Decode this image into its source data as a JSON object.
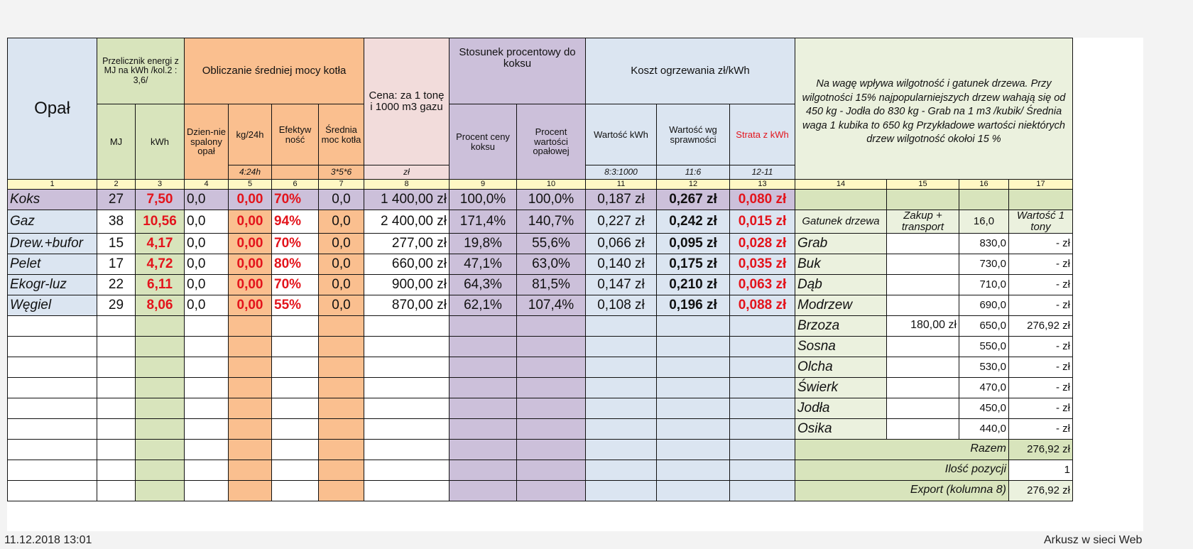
{
  "header": {
    "opal": "Opał",
    "przelicznik": "Przelicznik energi z MJ na kWh /kol.2 : 3,6/",
    "obliczanie": "Obliczanie średniej mocy kotła",
    "cena": "Cena: za 1 tonę i 1000 m3 gazu",
    "stosunek": "Stosunek procentowy do koksu",
    "koszt": "Koszt ogrzewania zł/kWh",
    "note": "Na wagę wpływa wilgotność i gatunek drzewa. Przy wilgotności 15% najpopularniejszych drzew wahają się od 450 kg - Jodła do 830 kg - Grab na 1 m3 /kubik/ Średnia waga 1 kubika to 650 kg Przykładowe wartości niektórych drzew wilgotność okołoi 15 %",
    "mj": "MJ",
    "kwh": "kWh",
    "dziennie": "Dzien-nie spalony opał",
    "kg24h": "kg/24h",
    "efektywnosc": "Efektyw ność",
    "srednia_moc": "Średnia moc kotła",
    "procent_ceny": "Procent ceny koksu",
    "procent_wartosci": "Procent wartości opałowej",
    "wartosc_kwh": "Wartość kWh",
    "wartosc_wg": "Wartość wg sprawności",
    "strata": "Strata z kWh",
    "sub_5": "4:24h",
    "sub_7": "3*5*6",
    "sub_8": "zł",
    "sub_11": "8:3:1000",
    "sub_12": "11:6",
    "sub_13": "12-11",
    "gatunek": "Gatunek drzewa",
    "zakup": "Zakup + transport",
    "col16": "16,0",
    "wartosc_tony": "Wartość 1 tony"
  },
  "col_numbers": [
    "1",
    "2",
    "3",
    "4",
    "5",
    "6",
    "7",
    "8",
    "9",
    "10",
    "11",
    "12",
    "13",
    "14",
    "15",
    "16",
    "17"
  ],
  "fuels": [
    {
      "name": "Koks",
      "mj": "27",
      "kwh": "7,50",
      "dz": "0,0",
      "kg": "0,00",
      "ef": "70%",
      "sm": "0,0",
      "cena": "1 400,00 zł",
      "pc": "100,0%",
      "pw": "100,0%",
      "wk": "0,187 zł",
      "ws": "0,267 zł",
      "st": "0,080 zł"
    },
    {
      "name": "Gaz",
      "mj": "38",
      "kwh": "10,56",
      "dz": "0,0",
      "kg": "0,00",
      "ef": "94%",
      "sm": "0,0",
      "cena": "2 400,00 zł",
      "pc": "171,4%",
      "pw": "140,7%",
      "wk": "0,227 zł",
      "ws": "0,242 zł",
      "st": "0,015 zł"
    },
    {
      "name": "Drew.+bufor",
      "mj": "15",
      "kwh": "4,17",
      "dz": "0,0",
      "kg": "0,00",
      "ef": "70%",
      "sm": "0,0",
      "cena": "277,00 zł",
      "pc": "19,8%",
      "pw": "55,6%",
      "wk": "0,066 zł",
      "ws": "0,095 zł",
      "st": "0,028 zł"
    },
    {
      "name": "Pelet",
      "mj": "17",
      "kwh": "4,72",
      "dz": "0,0",
      "kg": "0,00",
      "ef": "80%",
      "sm": "0,0",
      "cena": "660,00 zł",
      "pc": "47,1%",
      "pw": "63,0%",
      "wk": "0,140 zł",
      "ws": "0,175 zł",
      "st": "0,035 zł"
    },
    {
      "name": "Ekogr-luz",
      "mj": "22",
      "kwh": "6,11",
      "dz": "0,0",
      "kg": "0,00",
      "ef": "70%",
      "sm": "0,0",
      "cena": "900,00 zł",
      "pc": "64,3%",
      "pw": "81,5%",
      "wk": "0,147 zł",
      "ws": "0,210 zł",
      "st": "0,063 zł"
    },
    {
      "name": "Węgiel",
      "mj": "29",
      "kwh": "8,06",
      "dz": "0,0",
      "kg": "0,00",
      "ef": "55%",
      "sm": "0,0",
      "cena": "870,00 zł",
      "pc": "62,1%",
      "pw": "107,4%",
      "wk": "0,108 zł",
      "ws": "0,196 zł",
      "st": "0,088 zł"
    }
  ],
  "woods": [
    {
      "name": "Grab",
      "zakup": "",
      "kg": "830,0",
      "wart": "-   zł"
    },
    {
      "name": "Buk",
      "zakup": "",
      "kg": "730,0",
      "wart": "-   zł"
    },
    {
      "name": "Dąb",
      "zakup": "",
      "kg": "710,0",
      "wart": "-   zł"
    },
    {
      "name": "Modrzew",
      "zakup": "",
      "kg": "690,0",
      "wart": "-   zł"
    },
    {
      "name": "Brzoza",
      "zakup": "180,00 zł",
      "kg": "650,0",
      "wart": "276,92 zł"
    },
    {
      "name": "Sosna",
      "zakup": "",
      "kg": "550,0",
      "wart": "-   zł"
    },
    {
      "name": "Olcha",
      "zakup": "",
      "kg": "530,0",
      "wart": "-   zł"
    },
    {
      "name": "Świerk",
      "zakup": "",
      "kg": "470,0",
      "wart": "-   zł"
    },
    {
      "name": "Jodła",
      "zakup": "",
      "kg": "450,0",
      "wart": "-   zł"
    },
    {
      "name": "Osika",
      "zakup": "",
      "kg": "440,0",
      "wart": "-   zł"
    }
  ],
  "summary": {
    "razem_label": "Razem",
    "razem_value": "276,92 zł",
    "ilosc_label": "Ilość pozycji",
    "ilosc_value": "1",
    "export_label": "Export (kolumna 8)",
    "export_value": "276,92 zł"
  },
  "footer": {
    "left": "11.12.2018 13:01",
    "right": "Arkusz w sieci Web"
  }
}
